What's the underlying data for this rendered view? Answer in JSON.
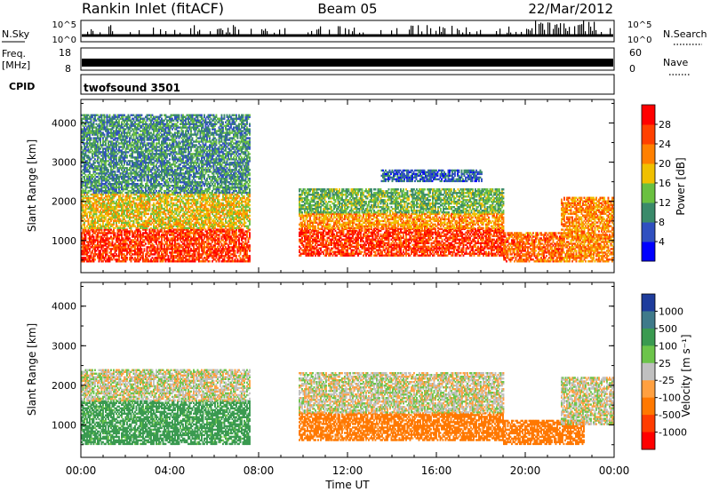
{
  "header": {
    "title": "Rankin Inlet (fitACF)",
    "beam": "Beam 05",
    "date": "22/Mar/2012"
  },
  "noise_panel": {
    "left_label": "N.Sky",
    "right_label": "N.Search",
    "left_ticks": [
      "10^5",
      "10^0"
    ],
    "right_ticks": [
      "10^5",
      "10^0"
    ]
  },
  "freq_panel": {
    "left_label_top": "Freq.",
    "left_label_unit": "[MHz]",
    "right_label": "Nave",
    "left_ticks": [
      "18",
      "8"
    ],
    "right_ticks": [
      "60",
      "0"
    ]
  },
  "cpid_panel": {
    "label": "CPID",
    "value": "twofsound 3501"
  },
  "axes": {
    "x_ticks": [
      "00:00",
      "04:00",
      "08:00",
      "12:00",
      "16:00",
      "20:00",
      "00:00"
    ],
    "xlabel": "Time UT",
    "y_ticks": [
      "1000",
      "2000",
      "3000",
      "4000"
    ],
    "ylabel": "Slant Range [km]"
  },
  "colorbars": {
    "power": {
      "label": "Power [dB]",
      "ticks": [
        "4",
        "8",
        "12",
        "16",
        "20",
        "24",
        "28"
      ],
      "colors": [
        "#0000ff",
        "#3050c0",
        "#3a8a6a",
        "#6ac040",
        "#f0c000",
        "#ff8000",
        "#ff4000",
        "#ff0000"
      ]
    },
    "velocity": {
      "label": "Velocity [m s⁻¹]",
      "ticks": [
        "1000",
        "500",
        "100",
        "25",
        "-25",
        "-100",
        "-500",
        "-1000"
      ],
      "colors": [
        "#1e3c9c",
        "#3f7a8a",
        "#3a9a50",
        "#6cc44a",
        "#c0c0c0",
        "#ffa040",
        "#ff7800",
        "#ff3c00",
        "#ff0000"
      ]
    }
  },
  "chart_data": [
    {
      "type": "heatmap",
      "name": "power",
      "x_range_hours": [
        0,
        24
      ],
      "ylim_km": [
        180,
        4600
      ],
      "value_unit": "dB",
      "value_range": [
        0,
        32
      ],
      "features": [
        {
          "t": [
            0.0,
            7.6
          ],
          "range_km": [
            450,
            1300
          ],
          "value": 27
        },
        {
          "t": [
            0.0,
            7.6
          ],
          "range_km": [
            1300,
            2200
          ],
          "value": 18
        },
        {
          "t": [
            0.0,
            7.6
          ],
          "range_km": [
            2200,
            4200
          ],
          "value": 10
        },
        {
          "t": [
            9.8,
            19.0
          ],
          "range_km": [
            600,
            1300
          ],
          "value": 27
        },
        {
          "t": [
            9.8,
            19.0
          ],
          "range_km": [
            1300,
            1700
          ],
          "value": 21
        },
        {
          "t": [
            9.8,
            19.0
          ],
          "range_km": [
            1700,
            2300
          ],
          "value": 13
        },
        {
          "t": [
            19.0,
            21.6
          ],
          "range_km": [
            450,
            1200
          ],
          "value": 24
        },
        {
          "t": [
            21.6,
            24.0
          ],
          "range_km": [
            450,
            2100
          ],
          "value": 22
        },
        {
          "t": [
            13.5,
            18.0
          ],
          "range_km": [
            2500,
            2800
          ],
          "value": 7
        }
      ]
    },
    {
      "type": "heatmap",
      "name": "velocity",
      "x_range_hours": [
        0,
        24
      ],
      "ylim_km": [
        180,
        4600
      ],
      "value_unit": "m s^-1",
      "value_range": [
        -1000,
        1000
      ],
      "features": [
        {
          "t": [
            0.0,
            7.6
          ],
          "range_km": [
            500,
            1600
          ],
          "value": 150
        },
        {
          "t": [
            0.0,
            7.6
          ],
          "range_km": [
            1600,
            2400
          ],
          "value": 0
        },
        {
          "t": [
            9.8,
            15.0
          ],
          "range_km": [
            600,
            1300
          ],
          "value": -150
        },
        {
          "t": [
            15.0,
            19.0
          ],
          "range_km": [
            600,
            1300
          ],
          "value": -250
        },
        {
          "t": [
            9.8,
            19.0
          ],
          "range_km": [
            1300,
            2300
          ],
          "value": 0
        },
        {
          "t": [
            19.0,
            22.6
          ],
          "range_km": [
            500,
            1100
          ],
          "value": -300
        },
        {
          "t": [
            21.6,
            24.0
          ],
          "range_km": [
            1000,
            2200
          ],
          "value": 0
        }
      ]
    }
  ]
}
